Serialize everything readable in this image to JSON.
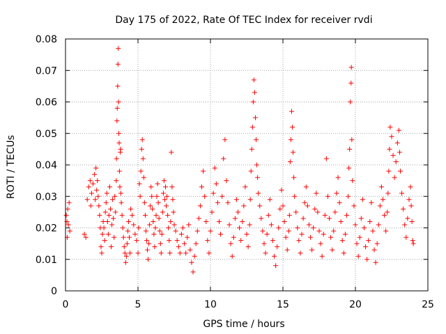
{
  "chart_data": {
    "type": "scatter",
    "title": "Day 175 of 2022, Rate Of TEC Index for receiver rvdi",
    "xlabel": "GPS time / hours",
    "ylabel": "ROTI / TECUs",
    "xlim": [
      0,
      25
    ],
    "ylim": [
      0,
      0.08
    ],
    "x_ticks": [
      0,
      5,
      10,
      15,
      20,
      25
    ],
    "y_ticks": [
      0,
      0.01,
      0.02,
      0.03,
      0.04,
      0.05,
      0.06,
      0.07,
      0.08
    ],
    "x_tick_labels": [
      "0",
      "5",
      "10",
      "15",
      "20",
      "25"
    ],
    "y_tick_labels": [
      "0",
      "0.01",
      "0.02",
      "0.03",
      "0.04",
      "0.05",
      "0.06",
      "0.07",
      "0.08"
    ],
    "grid": true,
    "marker": "+",
    "color": "#ff0000",
    "series": [
      {
        "points": [
          [
            0.05,
            0.024
          ],
          [
            0.1,
            0.022
          ],
          [
            0.12,
            0.017
          ],
          [
            0.15,
            0.026
          ],
          [
            0.2,
            0.021
          ],
          [
            0.25,
            0.028
          ],
          [
            0.3,
            0.019
          ],
          [
            1.3,
            0.018
          ],
          [
            1.4,
            0.017
          ],
          [
            1.5,
            0.029
          ],
          [
            1.6,
            0.033
          ],
          [
            1.7,
            0.035
          ],
          [
            1.75,
            0.027
          ],
          [
            1.8,
            0.031
          ],
          [
            1.9,
            0.034
          ],
          [
            2.0,
            0.037
          ],
          [
            2.05,
            0.029
          ],
          [
            2.1,
            0.039
          ],
          [
            2.15,
            0.032
          ],
          [
            2.2,
            0.035
          ],
          [
            2.25,
            0.03
          ],
          [
            2.3,
            0.027
          ],
          [
            2.35,
            0.024
          ],
          [
            2.4,
            0.02
          ],
          [
            2.45,
            0.014
          ],
          [
            2.5,
            0.012
          ],
          [
            2.55,
            0.018
          ],
          [
            2.6,
            0.022
          ],
          [
            2.65,
            0.02
          ],
          [
            2.7,
            0.016
          ],
          [
            2.75,
            0.025
          ],
          [
            2.8,
            0.028
          ],
          [
            2.85,
            0.031
          ],
          [
            2.9,
            0.022
          ],
          [
            2.95,
            0.018
          ],
          [
            3.0,
            0.024
          ],
          [
            3.05,
            0.033
          ],
          [
            3.1,
            0.026
          ],
          [
            3.15,
            0.014
          ],
          [
            3.2,
            0.021
          ],
          [
            3.25,
            0.029
          ],
          [
            3.3,
            0.023
          ],
          [
            3.35,
            0.017
          ],
          [
            3.4,
            0.03
          ],
          [
            3.45,
            0.025
          ],
          [
            3.5,
            0.035
          ],
          [
            3.52,
            0.042
          ],
          [
            3.55,
            0.054
          ],
          [
            3.57,
            0.058
          ],
          [
            3.6,
            0.065
          ],
          [
            3.62,
            0.072
          ],
          [
            3.64,
            0.077
          ],
          [
            3.66,
            0.06
          ],
          [
            3.68,
            0.05
          ],
          [
            3.7,
            0.047
          ],
          [
            3.72,
            0.038
          ],
          [
            3.75,
            0.033
          ],
          [
            3.78,
            0.044
          ],
          [
            3.8,
            0.045
          ],
          [
            3.82,
            0.031
          ],
          [
            3.85,
            0.028
          ],
          [
            3.9,
            0.024
          ],
          [
            3.95,
            0.02
          ],
          [
            4.0,
            0.017
          ],
          [
            4.05,
            0.014
          ],
          [
            4.1,
            0.012
          ],
          [
            4.15,
            0.009
          ],
          [
            4.2,
            0.011
          ],
          [
            4.25,
            0.015
          ],
          [
            4.3,
            0.019
          ],
          [
            4.35,
            0.022
          ],
          [
            4.4,
            0.017
          ],
          [
            4.45,
            0.012
          ],
          [
            4.5,
            0.026
          ],
          [
            4.6,
            0.024
          ],
          [
            4.7,
            0.021
          ],
          [
            4.8,
            0.018
          ],
          [
            4.9,
            0.016
          ],
          [
            5.0,
            0.012
          ],
          [
            5.05,
            0.02
          ],
          [
            5.1,
            0.034
          ],
          [
            5.15,
            0.03
          ],
          [
            5.2,
            0.038
          ],
          [
            5.25,
            0.045
          ],
          [
            5.3,
            0.048
          ],
          [
            5.35,
            0.042
          ],
          [
            5.4,
            0.036
          ],
          [
            5.45,
            0.028
          ],
          [
            5.5,
            0.024
          ],
          [
            5.55,
            0.019
          ],
          [
            5.6,
            0.016
          ],
          [
            5.65,
            0.013
          ],
          [
            5.7,
            0.01
          ],
          [
            5.75,
            0.015
          ],
          [
            5.8,
            0.021
          ],
          [
            5.85,
            0.027
          ],
          [
            5.9,
            0.033
          ],
          [
            5.95,
            0.03
          ],
          [
            6.0,
            0.026
          ],
          [
            6.05,
            0.022
          ],
          [
            6.1,
            0.018
          ],
          [
            6.15,
            0.014
          ],
          [
            6.2,
            0.02
          ],
          [
            6.25,
            0.024
          ],
          [
            6.3,
            0.03
          ],
          [
            6.35,
            0.034
          ],
          [
            6.4,
            0.028
          ],
          [
            6.45,
            0.023
          ],
          [
            6.5,
            0.019
          ],
          [
            6.55,
            0.015
          ],
          [
            6.6,
            0.012
          ],
          [
            6.65,
            0.018
          ],
          [
            6.7,
            0.025
          ],
          [
            6.75,
            0.031
          ],
          [
            6.8,
            0.035
          ],
          [
            6.85,
            0.029
          ],
          [
            6.9,
            0.033
          ],
          [
            6.95,
            0.027
          ],
          [
            7.0,
            0.03
          ],
          [
            7.05,
            0.024
          ],
          [
            7.1,
            0.02
          ],
          [
            7.15,
            0.016
          ],
          [
            7.2,
            0.012
          ],
          [
            7.25,
            0.022
          ],
          [
            7.3,
            0.044
          ],
          [
            7.35,
            0.033
          ],
          [
            7.4,
            0.029
          ],
          [
            7.45,
            0.025
          ],
          [
            7.5,
            0.021
          ],
          [
            7.6,
            0.019
          ],
          [
            7.7,
            0.016
          ],
          [
            7.8,
            0.014
          ],
          [
            7.9,
            0.012
          ],
          [
            8.0,
            0.018
          ],
          [
            8.1,
            0.02
          ],
          [
            8.2,
            0.015
          ],
          [
            8.3,
            0.012
          ],
          [
            8.4,
            0.017
          ],
          [
            8.5,
            0.021
          ],
          [
            8.6,
            0.013
          ],
          [
            8.7,
            0.009
          ],
          [
            8.8,
            0.006
          ],
          [
            8.9,
            0.011
          ],
          [
            9.0,
            0.015
          ],
          [
            9.1,
            0.019
          ],
          [
            9.2,
            0.023
          ],
          [
            9.3,
            0.027
          ],
          [
            9.4,
            0.033
          ],
          [
            9.5,
            0.038
          ],
          [
            9.6,
            0.03
          ],
          [
            9.7,
            0.022
          ],
          [
            9.8,
            0.016
          ],
          [
            9.9,
            0.012
          ],
          [
            10.0,
            0.019
          ],
          [
            10.1,
            0.025
          ],
          [
            10.2,
            0.031
          ],
          [
            10.3,
            0.039
          ],
          [
            10.4,
            0.034
          ],
          [
            10.5,
            0.028
          ],
          [
            10.6,
            0.022
          ],
          [
            10.7,
            0.018
          ],
          [
            10.8,
            0.03
          ],
          [
            10.9,
            0.042
          ],
          [
            11.0,
            0.048
          ],
          [
            11.1,
            0.035
          ],
          [
            11.2,
            0.028
          ],
          [
            11.3,
            0.021
          ],
          [
            11.4,
            0.015
          ],
          [
            11.5,
            0.011
          ],
          [
            11.6,
            0.017
          ],
          [
            11.7,
            0.023
          ],
          [
            11.8,
            0.029
          ],
          [
            11.9,
            0.025
          ],
          [
            12.0,
            0.02
          ],
          [
            12.1,
            0.016
          ],
          [
            12.2,
            0.022
          ],
          [
            12.3,
            0.027
          ],
          [
            12.4,
            0.033
          ],
          [
            12.5,
            0.018
          ],
          [
            12.6,
            0.014
          ],
          [
            12.7,
            0.021
          ],
          [
            12.75,
            0.029
          ],
          [
            12.8,
            0.038
          ],
          [
            12.85,
            0.045
          ],
          [
            12.9,
            0.052
          ],
          [
            12.95,
            0.06
          ],
          [
            13.0,
            0.067
          ],
          [
            13.05,
            0.063
          ],
          [
            13.1,
            0.055
          ],
          [
            13.15,
            0.048
          ],
          [
            13.2,
            0.04
          ],
          [
            13.25,
            0.036
          ],
          [
            13.3,
            0.031
          ],
          [
            13.4,
            0.027
          ],
          [
            13.5,
            0.023
          ],
          [
            13.6,
            0.019
          ],
          [
            13.7,
            0.015
          ],
          [
            13.8,
            0.012
          ],
          [
            13.9,
            0.018
          ],
          [
            14.0,
            0.024
          ],
          [
            14.1,
            0.029
          ],
          [
            14.2,
            0.021
          ],
          [
            14.3,
            0.016
          ],
          [
            14.4,
            0.011
          ],
          [
            14.5,
            0.008
          ],
          [
            14.6,
            0.014
          ],
          [
            14.7,
            0.02
          ],
          [
            14.8,
            0.026
          ],
          [
            14.9,
            0.032
          ],
          [
            15.0,
            0.027
          ],
          [
            15.1,
            0.022
          ],
          [
            15.2,
            0.017
          ],
          [
            15.3,
            0.013
          ],
          [
            15.4,
            0.019
          ],
          [
            15.45,
            0.024
          ],
          [
            15.5,
            0.041
          ],
          [
            15.55,
            0.048
          ],
          [
            15.6,
            0.057
          ],
          [
            15.65,
            0.052
          ],
          [
            15.7,
            0.044
          ],
          [
            15.75,
            0.036
          ],
          [
            15.8,
            0.03
          ],
          [
            15.9,
            0.025
          ],
          [
            16.0,
            0.02
          ],
          [
            16.1,
            0.016
          ],
          [
            16.2,
            0.012
          ],
          [
            16.3,
            0.018
          ],
          [
            16.4,
            0.023
          ],
          [
            16.5,
            0.028
          ],
          [
            16.6,
            0.033
          ],
          [
            16.7,
            0.027
          ],
          [
            16.8,
            0.021
          ],
          [
            16.9,
            0.017
          ],
          [
            17.0,
            0.013
          ],
          [
            17.1,
            0.02
          ],
          [
            17.2,
            0.026
          ],
          [
            17.3,
            0.031
          ],
          [
            17.4,
            0.025
          ],
          [
            17.5,
            0.019
          ],
          [
            17.6,
            0.015
          ],
          [
            17.7,
            0.011
          ],
          [
            17.8,
            0.018
          ],
          [
            17.9,
            0.024
          ],
          [
            18.0,
            0.042
          ],
          [
            18.1,
            0.03
          ],
          [
            18.2,
            0.023
          ],
          [
            18.3,
            0.017
          ],
          [
            18.4,
            0.013
          ],
          [
            18.5,
            0.019
          ],
          [
            18.6,
            0.025
          ],
          [
            18.7,
            0.031
          ],
          [
            18.8,
            0.036
          ],
          [
            18.9,
            0.028
          ],
          [
            19.0,
            0.022
          ],
          [
            19.1,
            0.016
          ],
          [
            19.2,
            0.012
          ],
          [
            19.3,
            0.018
          ],
          [
            19.4,
            0.024
          ],
          [
            19.5,
            0.03
          ],
          [
            19.55,
            0.039
          ],
          [
            19.6,
            0.045
          ],
          [
            19.65,
            0.06
          ],
          [
            19.7,
            0.066
          ],
          [
            19.72,
            0.071
          ],
          [
            19.75,
            0.048
          ],
          [
            19.8,
            0.035
          ],
          [
            19.9,
            0.027
          ],
          [
            20.0,
            0.021
          ],
          [
            20.1,
            0.015
          ],
          [
            20.2,
            0.011
          ],
          [
            20.3,
            0.017
          ],
          [
            20.4,
            0.023
          ],
          [
            20.5,
            0.029
          ],
          [
            20.6,
            0.02
          ],
          [
            20.7,
            0.014
          ],
          [
            20.8,
            0.01
          ],
          [
            20.9,
            0.016
          ],
          [
            21.0,
            0.022
          ],
          [
            21.1,
            0.028
          ],
          [
            21.2,
            0.019
          ],
          [
            21.3,
            0.013
          ],
          [
            21.4,
            0.009
          ],
          [
            21.5,
            0.015
          ],
          [
            21.6,
            0.021
          ],
          [
            21.7,
            0.027
          ],
          [
            21.8,
            0.033
          ],
          [
            21.9,
            0.029
          ],
          [
            22.0,
            0.024
          ],
          [
            22.1,
            0.019
          ],
          [
            22.2,
            0.025
          ],
          [
            22.25,
            0.031
          ],
          [
            22.3,
            0.038
          ],
          [
            22.35,
            0.045
          ],
          [
            22.4,
            0.052
          ],
          [
            22.5,
            0.049
          ],
          [
            22.6,
            0.043
          ],
          [
            22.7,
            0.036
          ],
          [
            22.8,
            0.041
          ],
          [
            22.9,
            0.047
          ],
          [
            23.0,
            0.051
          ],
          [
            23.05,
            0.044
          ],
          [
            23.1,
            0.038
          ],
          [
            23.2,
            0.031
          ],
          [
            23.3,
            0.026
          ],
          [
            23.4,
            0.021
          ],
          [
            23.5,
            0.017
          ],
          [
            23.6,
            0.023
          ],
          [
            23.7,
            0.029
          ],
          [
            23.8,
            0.033
          ],
          [
            23.85,
            0.027
          ],
          [
            23.9,
            0.022
          ],
          [
            23.95,
            0.016
          ],
          [
            24.0,
            0.015
          ]
        ]
      }
    ]
  }
}
